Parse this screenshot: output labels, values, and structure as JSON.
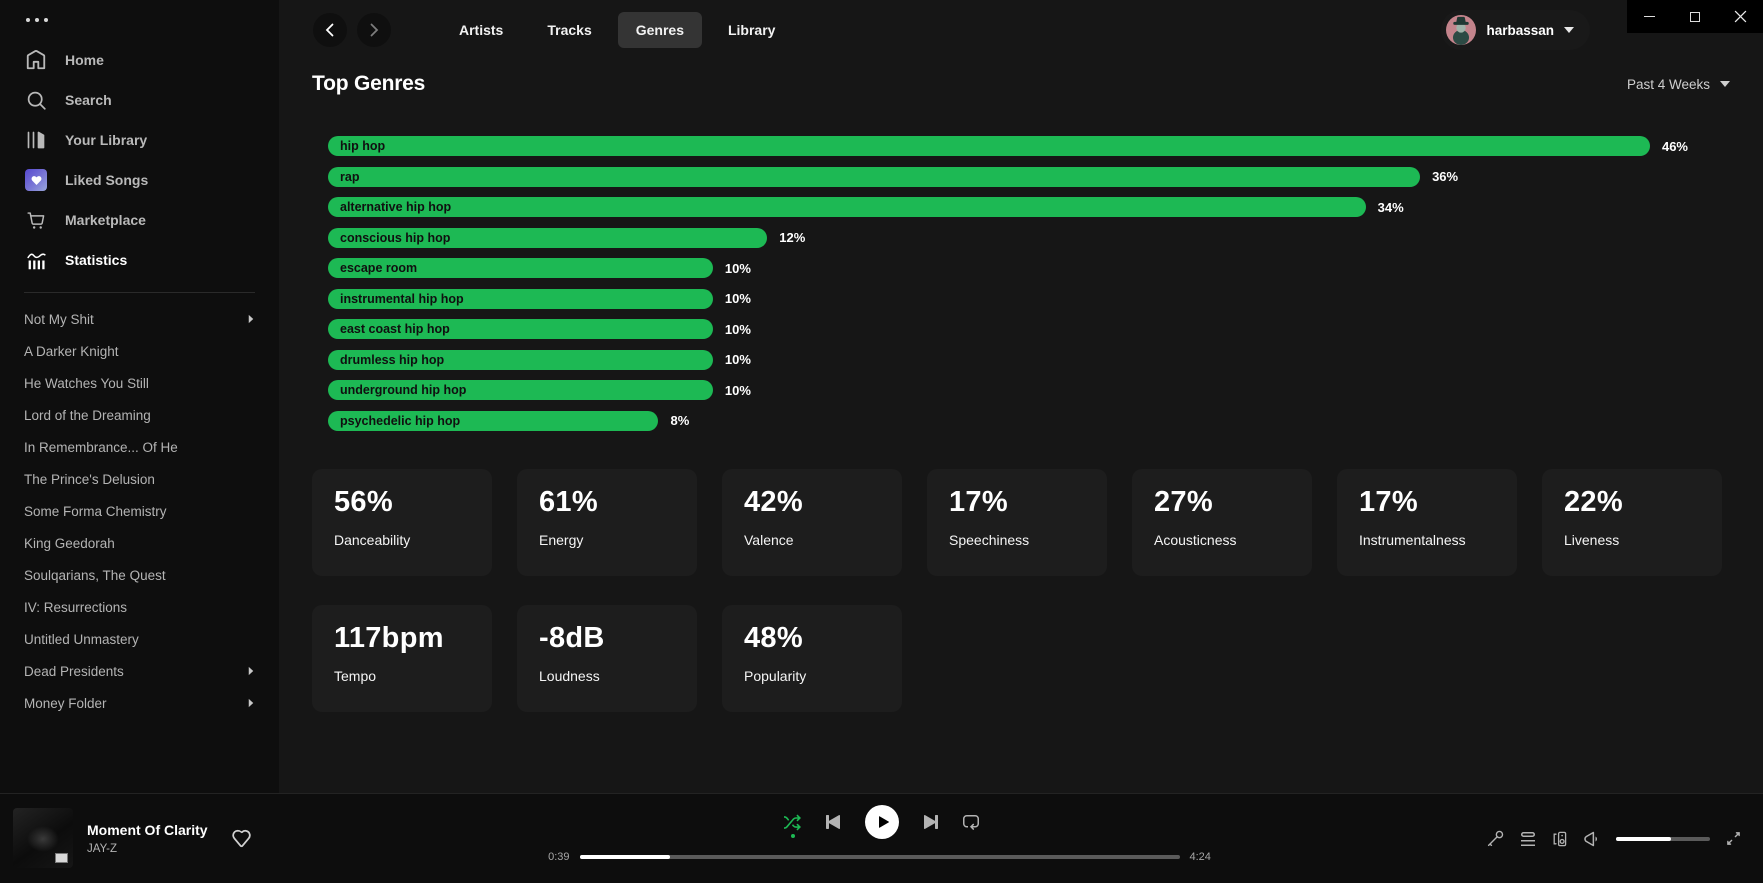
{
  "app": {
    "user_name": "harbassan"
  },
  "titlebar": {
    "menu_icon": "ellipsis-menu-icon",
    "window_controls": [
      "minimize",
      "maximize",
      "close"
    ]
  },
  "topbar": {
    "tabs": [
      {
        "label": "Artists",
        "active": false
      },
      {
        "label": "Tracks",
        "active": false
      },
      {
        "label": "Genres",
        "active": true
      },
      {
        "label": "Library",
        "active": false
      }
    ]
  },
  "sidebar": {
    "nav": [
      {
        "label": "Home",
        "icon": "home-icon",
        "active": false
      },
      {
        "label": "Search",
        "icon": "search-icon",
        "active": false
      },
      {
        "label": "Your Library",
        "icon": "library-icon",
        "active": false
      },
      {
        "label": "Liked Songs",
        "icon": "liked-songs-icon",
        "active": false
      },
      {
        "label": "Marketplace",
        "icon": "marketplace-icon",
        "active": false
      },
      {
        "label": "Statistics",
        "icon": "statistics-icon",
        "active": true
      }
    ],
    "playlists": [
      {
        "label": "Not My Shit",
        "has_submenu": true
      },
      {
        "label": "A Darker Knight",
        "has_submenu": false
      },
      {
        "label": "He Watches You Still",
        "has_submenu": false
      },
      {
        "label": "Lord of the Dreaming",
        "has_submenu": false
      },
      {
        "label": "In Remembrance... Of He",
        "has_submenu": false
      },
      {
        "label": "The Prince's Delusion",
        "has_submenu": false
      },
      {
        "label": "Some Forma Chemistry",
        "has_submenu": false
      },
      {
        "label": "King Geedorah",
        "has_submenu": false
      },
      {
        "label": "Soulqarians, The Quest",
        "has_submenu": false
      },
      {
        "label": "IV: Resurrections",
        "has_submenu": false
      },
      {
        "label": "Untitled Unmastery",
        "has_submenu": false
      },
      {
        "label": "Dead Presidents",
        "has_submenu": true
      },
      {
        "label": "Money Folder",
        "has_submenu": true
      }
    ]
  },
  "page": {
    "title": "Top Genres",
    "time_range": "Past 4 Weeks"
  },
  "chart_data": {
    "type": "bar",
    "orientation": "horizontal",
    "title": "Top Genres",
    "time_range": "Past 4 Weeks",
    "categories": [
      "hip hop",
      "rap",
      "alternative hip hop",
      "conscious hip hop",
      "escape room",
      "instrumental hip hop",
      "east coast hip hop",
      "drumless hip hop",
      "underground hip hop",
      "psychedelic hip hop"
    ],
    "values": [
      46,
      36,
      34,
      12,
      10,
      10,
      10,
      10,
      10,
      8
    ],
    "value_suffix": "%",
    "bar_color": "#1db954",
    "xlim": [
      0,
      46
    ]
  },
  "stats": [
    {
      "value": "56%",
      "label": "Danceability"
    },
    {
      "value": "61%",
      "label": "Energy"
    },
    {
      "value": "42%",
      "label": "Valence"
    },
    {
      "value": "17%",
      "label": "Speechiness"
    },
    {
      "value": "27%",
      "label": "Acousticness"
    },
    {
      "value": "17%",
      "label": "Instrumentalness"
    },
    {
      "value": "22%",
      "label": "Liveness"
    },
    {
      "value": "117bpm",
      "label": "Tempo"
    },
    {
      "value": "-8dB",
      "label": "Loudness"
    },
    {
      "value": "48%",
      "label": "Popularity"
    }
  ],
  "player": {
    "track": "Moment Of Clarity",
    "artist": "JAY-Z",
    "elapsed": "0:39",
    "duration": "4:24",
    "progress_pct": 15,
    "volume_pct": 58,
    "shuffle_active": true
  }
}
